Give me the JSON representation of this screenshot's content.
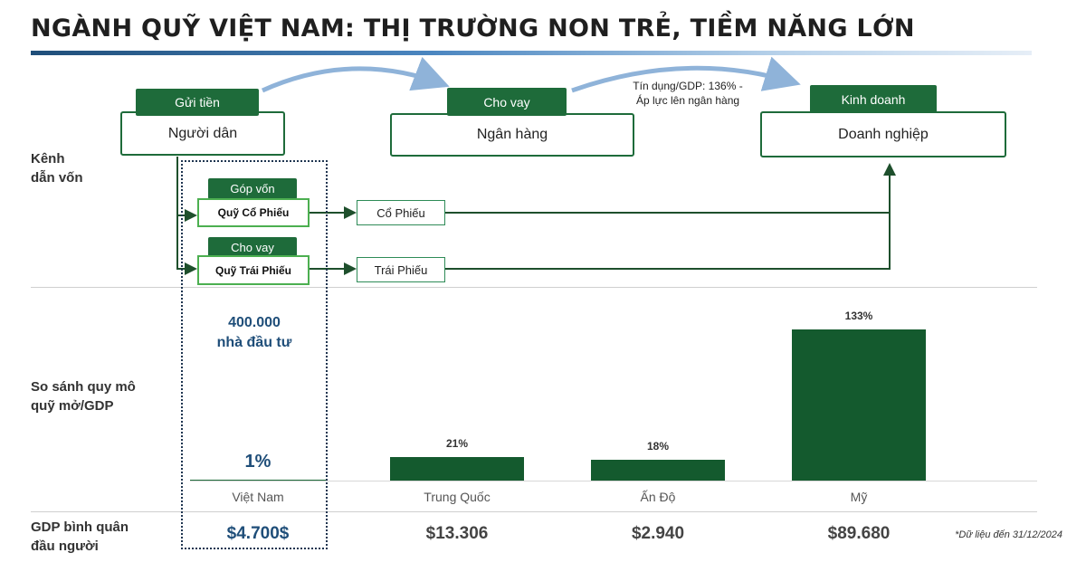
{
  "title": "NGÀNH QUỸ VIỆT NAM: THỊ TRƯỜNG NON TRẺ, TIỀM NĂNG LỚN",
  "row_labels": {
    "channels": [
      "Kênh",
      "dẫn vốn"
    ],
    "comparison": [
      "So sánh quy mô",
      "quỹ mở/GDP"
    ],
    "gdp": [
      "GDP bình quân",
      "đầu người"
    ]
  },
  "flow": {
    "people": {
      "tag": "Gửi tiền",
      "label": "Người dân"
    },
    "bank": {
      "tag": "Cho vay",
      "label": "Ngân hàng"
    },
    "business": {
      "tag": "Kinh doanh",
      "label": "Doanh nghiệp"
    },
    "credit_note": [
      "Tín dụng/GDP: 136% -",
      "Áp lực lên ngân hàng"
    ],
    "equity_fund": {
      "tag": "Góp vốn",
      "label": "Quỹ Cổ Phiếu",
      "asset": "Cổ Phiếu"
    },
    "bond_fund": {
      "tag": "Cho vay",
      "label": "Quỹ Trái Phiếu",
      "asset": "Trái Phiếu"
    }
  },
  "investors": [
    "400.000",
    "nhà đầu tư"
  ],
  "chart_data": {
    "type": "bar",
    "categories": [
      "Việt Nam",
      "Trung Quốc",
      "Ấn Độ",
      "Mỹ"
    ],
    "values": [
      1,
      21,
      18,
      133
    ],
    "value_labels": [
      "1%",
      "21%",
      "18%",
      "133%"
    ],
    "title": "",
    "xlabel": "",
    "ylabel": "",
    "bar_color": "#145a2e"
  },
  "gdp_per_capita": [
    "$4.700$",
    "$13.306",
    "$2.940",
    "$89.680"
  ],
  "footnote": "*Dữ liệu đến 31/12/2024",
  "colors": {
    "green": "#1e6b3a",
    "light_green": "#4caf50",
    "blue": "#1f4e79",
    "arrow_blue": "#8fb3d9"
  }
}
